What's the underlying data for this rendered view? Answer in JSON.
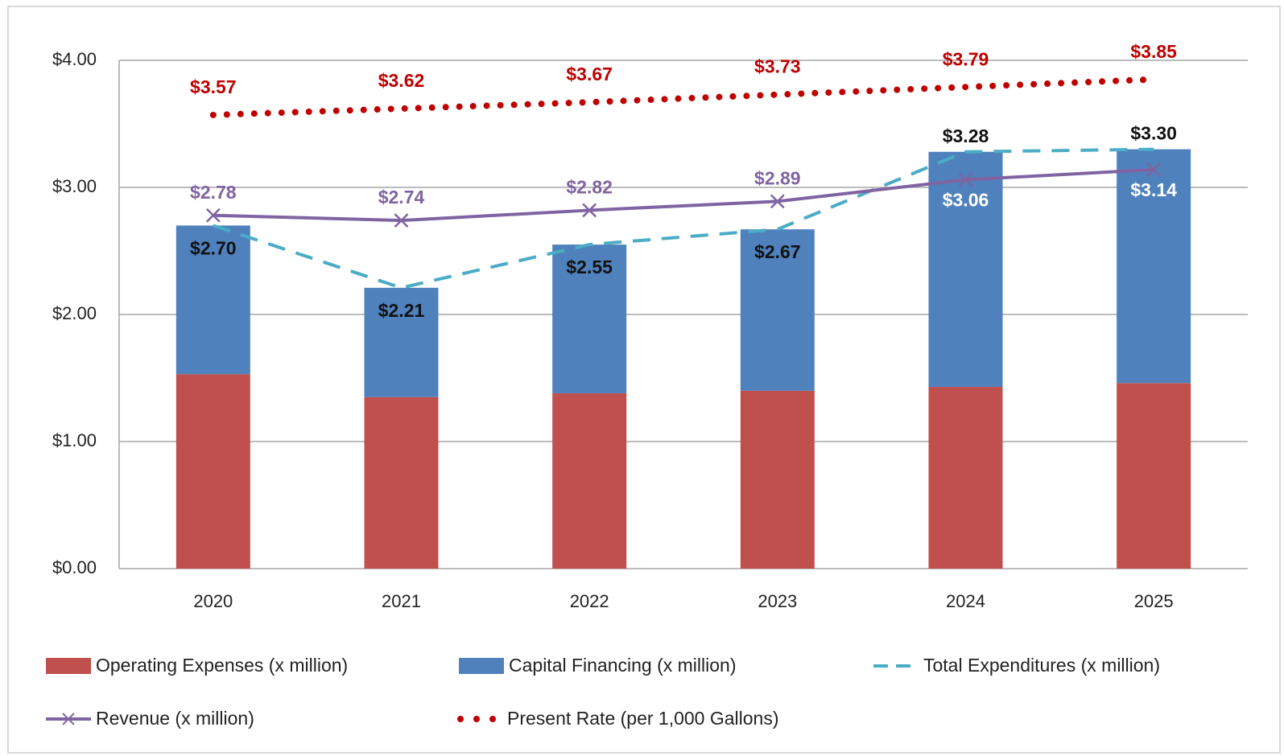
{
  "chart_data": {
    "type": "bar",
    "stacked": true,
    "categories": [
      "2020",
      "2021",
      "2022",
      "2023",
      "2024",
      "2025"
    ],
    "ylim": [
      0,
      4
    ],
    "yticks": [
      {
        "value": 0,
        "label": "$0.00"
      },
      {
        "value": 1,
        "label": "$1.00"
      },
      {
        "value": 2,
        "label": "$2.00"
      },
      {
        "value": 3,
        "label": "$3.00"
      },
      {
        "value": 4,
        "label": "$4.00"
      }
    ],
    "grid": true,
    "legend": "bottom",
    "series": [
      {
        "name": "Operating Expenses (x million)",
        "type": "bar",
        "color": "#c0504d",
        "values": [
          1.53,
          1.35,
          1.38,
          1.4,
          1.43,
          1.46
        ]
      },
      {
        "name": "Capital Financing (x million)",
        "type": "bar",
        "color": "#4f81bd",
        "values": [
          1.17,
          0.86,
          1.17,
          1.27,
          1.85,
          1.84
        ]
      },
      {
        "name": "Total Expenditures (x million)",
        "type": "line",
        "style": "dashed",
        "color": "#4bacc6",
        "values": [
          2.7,
          2.21,
          2.55,
          2.67,
          3.28,
          3.3
        ],
        "value_labels": [
          "$2.70",
          "$2.21",
          "$2.55",
          "$2.67",
          "$3.28",
          "$3.30"
        ]
      },
      {
        "name": "Revenue (x million)",
        "type": "line",
        "style": "solid",
        "marker": "x",
        "color": "#8064a2",
        "values": [
          2.78,
          2.74,
          2.82,
          2.89,
          3.06,
          3.14
        ],
        "value_labels": [
          "$2.78",
          "$2.74",
          "$2.82",
          "$2.89",
          "$3.06",
          "$3.14"
        ]
      },
      {
        "name": "Present Rate (per 1,000 Gallons)",
        "type": "line",
        "style": "dotted",
        "color": "#c00000",
        "values": [
          3.57,
          3.62,
          3.67,
          3.73,
          3.79,
          3.85
        ],
        "value_labels": [
          "$3.57",
          "$3.62",
          "$3.67",
          "$3.73",
          "$3.79",
          "$3.85"
        ]
      }
    ]
  }
}
